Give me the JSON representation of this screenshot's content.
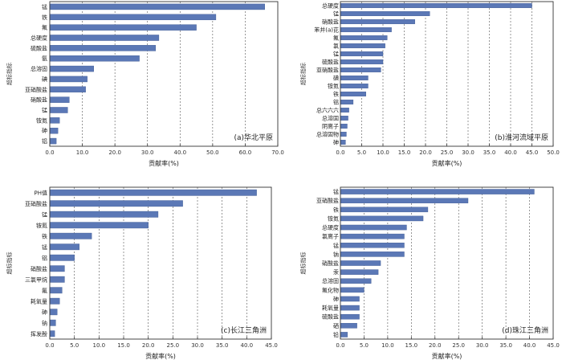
{
  "chart_data": [
    {
      "type": "bar",
      "orientation": "horizontal",
      "title": "(a)华北平原",
      "xlabel": "贡献率(%)",
      "ylabel": "超标指标",
      "xlim": [
        0,
        70
      ],
      "xticks": [
        "0.0",
        "10.0",
        "20.0",
        "30.0",
        "40.0",
        "50.0",
        "60.0",
        "70.0"
      ],
      "grid": "vertical dashed",
      "categories": [
        "锰",
        "铁",
        "氟",
        "总硬度",
        "硫酸盐",
        "氨",
        "总溶固",
        "碘",
        "亚硝酸盐",
        "硝酸盐",
        "锰",
        "铵氮",
        "砷",
        "铝"
      ],
      "values": [
        66.0,
        51.0,
        45.0,
        33.5,
        32.5,
        27.5,
        13.5,
        11.5,
        11.0,
        6.0,
        5.5,
        3.0,
        2.5,
        2.0
      ]
    },
    {
      "type": "bar",
      "orientation": "horizontal",
      "title": "(b)淮河流域平原",
      "xlabel": "贡献率(%)",
      "ylabel": "超标指标",
      "xlim": [
        0,
        50
      ],
      "xticks": [
        "0.0",
        "5.0",
        "10.0",
        "15.0",
        "20.0",
        "25.0",
        "30.0",
        "35.0",
        "40.0",
        "45.0",
        "50.0"
      ],
      "grid": "vertical dashed",
      "categories": [
        "总硬度",
        "锰",
        "硝酸盐",
        "苯并(a)芘",
        "氟",
        "氯",
        "锰",
        "硫酸盐",
        "亚硝酸盐",
        "碘",
        "铵氮",
        "铁",
        "铝",
        "总六六六",
        "总溶固",
        "阴离子",
        "总溶固物",
        "砷"
      ],
      "values": [
        45.0,
        21.0,
        17.5,
        12.0,
        11.0,
        10.5,
        10.0,
        10.0,
        9.5,
        6.5,
        6.5,
        6.0,
        3.0,
        2.0,
        1.8,
        1.6,
        1.4,
        1.2
      ]
    },
    {
      "type": "bar",
      "orientation": "horizontal",
      "title": "(c)长江三角洲",
      "xlabel": "贡献率(%)",
      "ylabel": "超标指标",
      "xlim": [
        0,
        45
      ],
      "xticks": [
        "0.0",
        "5.0",
        "10.0",
        "15.0",
        "20.0",
        "25.0",
        "30.0",
        "35.0",
        "40.0",
        "45.0"
      ],
      "grid": "vertical dashed",
      "categories": [
        "PH值",
        "亚硝酸盐",
        "锰",
        "铵氮",
        "铁",
        "锰",
        "铝",
        "硝酸盐",
        "三氯甲烷",
        "氟",
        "耗氧量",
        "砷",
        "钠",
        "挥发酚"
      ],
      "values": [
        42.0,
        27.0,
        22.0,
        20.0,
        8.5,
        6.0,
        5.0,
        3.0,
        3.0,
        2.5,
        2.0,
        1.5,
        1.2,
        1.0
      ]
    },
    {
      "type": "bar",
      "orientation": "horizontal",
      "title": "(d)珠江三角洲",
      "xlabel": "贡献率(%)",
      "ylabel": "超标指标",
      "xlim": [
        0,
        45
      ],
      "xticks": [
        "0.0",
        "5.0",
        "10.0",
        "15.0",
        "20.0",
        "25.0",
        "30.0",
        "35.0",
        "40.0",
        "45.0"
      ],
      "grid": "vertical dashed",
      "categories": [
        "锰",
        "亚硝酸盐",
        "铁",
        "铵氮",
        "总硬度",
        "氯离子",
        "锰",
        "钠",
        "硝酸盐",
        "汞",
        "总溶固",
        "氟化物",
        "砷",
        "耗氧量",
        "硫酸盐",
        "硒",
        "铅"
      ],
      "values": [
        41.0,
        27.0,
        18.5,
        17.5,
        14.0,
        13.5,
        13.5,
        13.5,
        8.5,
        8.0,
        6.5,
        5.0,
        4.0,
        4.0,
        4.0,
        3.5,
        1.5
      ]
    }
  ],
  "colors": {
    "bar": "#5b78b6",
    "bar_stroke": "#3f5a92",
    "grid": "#555555",
    "frame": "#333333"
  }
}
